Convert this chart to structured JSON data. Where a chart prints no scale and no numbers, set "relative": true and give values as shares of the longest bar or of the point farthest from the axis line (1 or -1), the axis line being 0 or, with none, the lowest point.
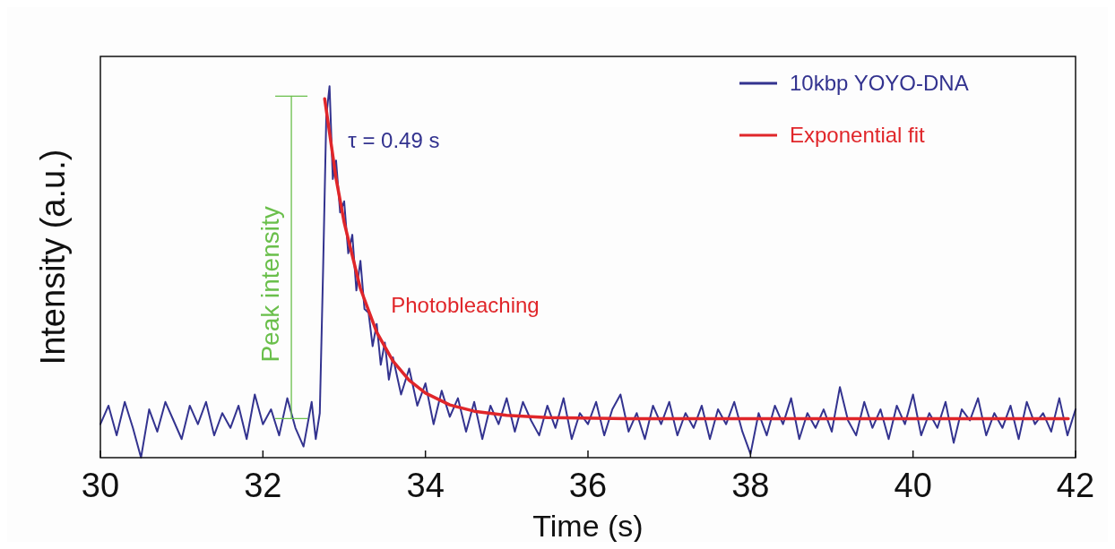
{
  "chart_data": {
    "type": "line",
    "relative": true,
    "xlabel": "Time (s)",
    "ylabel": "Intensity (a.u.)",
    "xlim": [
      30,
      42
    ],
    "xticks": [
      30,
      32,
      34,
      36,
      38,
      40,
      42
    ],
    "legend": "top right",
    "grid": false,
    "series": [
      {
        "name": "10kbp YOYO-DNA",
        "color": "#33338f",
        "x": [
          30.0,
          30.1,
          30.2,
          30.3,
          30.4,
          30.5,
          30.6,
          30.7,
          30.8,
          30.9,
          31.0,
          31.1,
          31.2,
          31.3,
          31.4,
          31.5,
          31.6,
          31.7,
          31.8,
          31.9,
          32.0,
          32.1,
          32.2,
          32.3,
          32.4,
          32.5,
          32.6,
          32.65,
          32.7,
          32.74,
          32.78,
          32.82,
          32.86,
          32.9,
          32.95,
          33.0,
          33.05,
          33.1,
          33.15,
          33.2,
          33.25,
          33.3,
          33.35,
          33.4,
          33.45,
          33.5,
          33.55,
          33.6,
          33.7,
          33.8,
          33.9,
          34.0,
          34.1,
          34.2,
          34.3,
          34.4,
          34.5,
          34.6,
          34.7,
          34.8,
          34.9,
          35.0,
          35.1,
          35.2,
          35.3,
          35.4,
          35.5,
          35.6,
          35.7,
          35.8,
          35.9,
          36.0,
          36.1,
          36.2,
          36.3,
          36.4,
          36.5,
          36.6,
          36.7,
          36.8,
          36.9,
          37.0,
          37.1,
          37.2,
          37.3,
          37.4,
          37.5,
          37.6,
          37.7,
          37.8,
          37.9,
          38.0,
          38.1,
          38.2,
          38.3,
          38.4,
          38.5,
          38.6,
          38.7,
          38.8,
          38.9,
          39.0,
          39.1,
          39.2,
          39.3,
          39.4,
          39.5,
          39.6,
          39.7,
          39.8,
          39.9,
          40.0,
          40.1,
          40.2,
          40.3,
          40.4,
          40.5,
          40.6,
          40.7,
          40.8,
          40.9,
          41.0,
          41.1,
          41.2,
          41.3,
          41.4,
          41.5,
          41.6,
          41.7,
          41.8,
          41.9,
          42.0
        ],
        "values": [
          0.09,
          0.14,
          0.06,
          0.15,
          0.08,
          0.0,
          0.13,
          0.07,
          0.15,
          0.1,
          0.05,
          0.14,
          0.09,
          0.15,
          0.06,
          0.12,
          0.08,
          0.14,
          0.05,
          0.17,
          0.09,
          0.13,
          0.06,
          0.16,
          0.08,
          0.03,
          0.15,
          0.05,
          0.12,
          0.5,
          0.92,
          1.0,
          0.75,
          0.8,
          0.66,
          0.69,
          0.55,
          0.6,
          0.45,
          0.53,
          0.4,
          0.39,
          0.3,
          0.36,
          0.25,
          0.31,
          0.21,
          0.27,
          0.17,
          0.24,
          0.14,
          0.2,
          0.09,
          0.18,
          0.11,
          0.16,
          0.07,
          0.15,
          0.05,
          0.14,
          0.09,
          0.16,
          0.07,
          0.15,
          0.1,
          0.06,
          0.14,
          0.08,
          0.16,
          0.05,
          0.12,
          0.09,
          0.15,
          0.06,
          0.13,
          0.17,
          0.07,
          0.12,
          0.05,
          0.14,
          0.09,
          0.15,
          0.06,
          0.12,
          0.08,
          0.14,
          0.05,
          0.13,
          0.09,
          0.15,
          0.07,
          0.01,
          0.12,
          0.06,
          0.14,
          0.09,
          0.16,
          0.05,
          0.12,
          0.08,
          0.13,
          0.07,
          0.19,
          0.1,
          0.06,
          0.15,
          0.08,
          0.13,
          0.05,
          0.14,
          0.09,
          0.17,
          0.06,
          0.12,
          0.08,
          0.15,
          0.04,
          0.13,
          0.1,
          0.16,
          0.06,
          0.12,
          0.08,
          0.14,
          0.05,
          0.15,
          0.09,
          0.12,
          0.07,
          0.16,
          0.06,
          0.13
        ]
      },
      {
        "name": "Exponential fit",
        "color": "#e0262a",
        "x": [
          32.76,
          32.9,
          33.0,
          33.2,
          33.4,
          33.6,
          33.8,
          34.0,
          34.3,
          34.6,
          35.0,
          35.5,
          36.5,
          41.91
        ],
        "values": [
          0.966,
          0.752,
          0.633,
          0.455,
          0.338,
          0.26,
          0.208,
          0.174,
          0.142,
          0.125,
          0.114,
          0.108,
          0.105,
          0.105
        ]
      },
      {
        "type": "line",
        "color": "#6abf4b",
        "x": [
          32.35,
          32.35
        ],
        "values": [
          0.105,
          0.973
        ]
      }
    ],
    "annotations": [
      "Peak intensity",
      "τ = 0.49 s",
      "Photobleaching"
    ]
  }
}
